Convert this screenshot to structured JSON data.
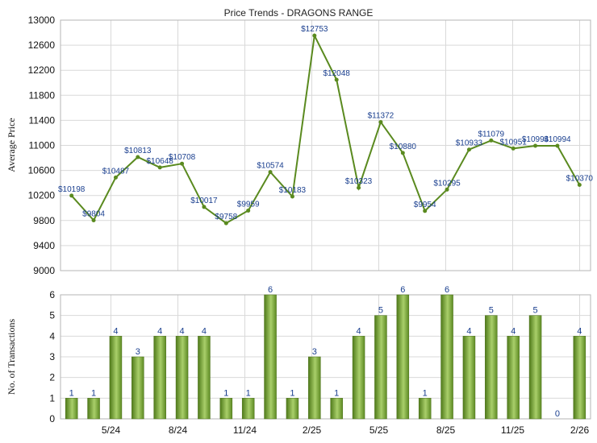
{
  "chart_data": [
    {
      "type": "line",
      "title": "Price Trends - DRAGONS RANGE",
      "ylabel": "Average Price",
      "ylim": [
        9000,
        13000
      ],
      "yticks": [
        9000,
        9400,
        9800,
        10200,
        10600,
        11000,
        11400,
        11800,
        12200,
        12600,
        13000
      ],
      "x_ticks": [
        "5/24",
        "8/24",
        "11/24",
        "2/25",
        "5/25",
        "8/25",
        "11/25",
        "2/26"
      ],
      "series": [
        {
          "values": [
            10198,
            9804,
            10487,
            10813,
            10648,
            10708,
            10017,
            9758,
            9959,
            10574,
            10183,
            12753,
            12048,
            10323,
            11372,
            10880,
            9954,
            10295,
            10933,
            11079,
            10951,
            10994,
            10994,
            10370
          ],
          "labels": [
            "$10198",
            "$9804",
            "$10487",
            "$10813",
            "$10648",
            "$10708",
            "$10017",
            "$9758",
            "$9959",
            "$10574",
            "$10183",
            "$12753",
            "$12048",
            "$10323",
            "$11372",
            "$10880",
            "$9954",
            "$10295",
            "$10933",
            "$11079",
            "$10951",
            "$10994",
            "$10994",
            "$10370"
          ]
        }
      ],
      "grid": true
    },
    {
      "type": "bar",
      "ylabel": "No. of Transactions",
      "ylim": [
        0,
        6
      ],
      "yticks": [
        0,
        1,
        2,
        3,
        4,
        5,
        6
      ],
      "x_ticks": [
        "5/24",
        "8/24",
        "11/24",
        "2/25",
        "5/25",
        "8/25",
        "11/25",
        "2/26"
      ],
      "values": [
        1,
        1,
        4,
        3,
        4,
        4,
        4,
        1,
        1,
        6,
        1,
        3,
        1,
        4,
        5,
        6,
        1,
        6,
        4,
        5,
        4,
        5,
        0,
        4
      ],
      "grid": true
    }
  ],
  "colors": {
    "line": "#5a8a1f",
    "bar_dark": "#4f7a1a",
    "bar_light": "#a9cf6a",
    "label": "#1a3f8f"
  }
}
